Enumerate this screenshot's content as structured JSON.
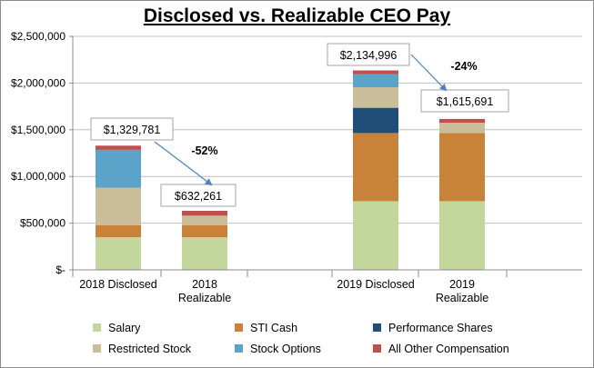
{
  "chart_data": {
    "type": "bar",
    "stacked": true,
    "title": "Disclosed vs. Realizable CEO Pay",
    "xlabel": "",
    "ylabel": "",
    "ylim": [
      0,
      2500000
    ],
    "yticks": [
      "$-",
      "$500,000",
      "$1,000,000",
      "$1,500,000",
      "$2,000,000",
      "$2,500,000"
    ],
    "grid": true,
    "legend_position": "bottom",
    "categories": [
      "2018 Disclosed",
      "2018\nRealizable",
      "2019 Disclosed",
      "2019\nRealizable"
    ],
    "series": [
      {
        "name": "Salary",
        "color": "#c3d69b",
        "values": [
          350000,
          350000,
          735000,
          735000
        ]
      },
      {
        "name": "STI Cash",
        "color": "#c8823a",
        "values": [
          130000,
          130000,
          730000,
          730000
        ]
      },
      {
        "name": "Performance Shares",
        "color": "#1f4e79",
        "values": [
          0,
          0,
          270000,
          0
        ]
      },
      {
        "name": "Restricted Stock",
        "color": "#c9bd9a",
        "values": [
          400000,
          100000,
          220000,
          110000
        ]
      },
      {
        "name": "Stock Options",
        "color": "#5ba3c9",
        "values": [
          405000,
          0,
          140000,
          0
        ]
      },
      {
        "name": "All Other Compensation",
        "color": "#c0504d",
        "values": [
          44781,
          52261,
          39996,
          40691
        ]
      }
    ],
    "totals": [
      1329781,
      632261,
      2134996,
      1615691
    ],
    "total_labels": [
      "$1,329,781",
      "$632,261",
      "$2,134,996",
      "$1,615,691"
    ],
    "change_labels": [
      {
        "from": 0,
        "to": 1,
        "text": "-52%"
      },
      {
        "from": 2,
        "to": 3,
        "text": "-24%"
      }
    ]
  }
}
